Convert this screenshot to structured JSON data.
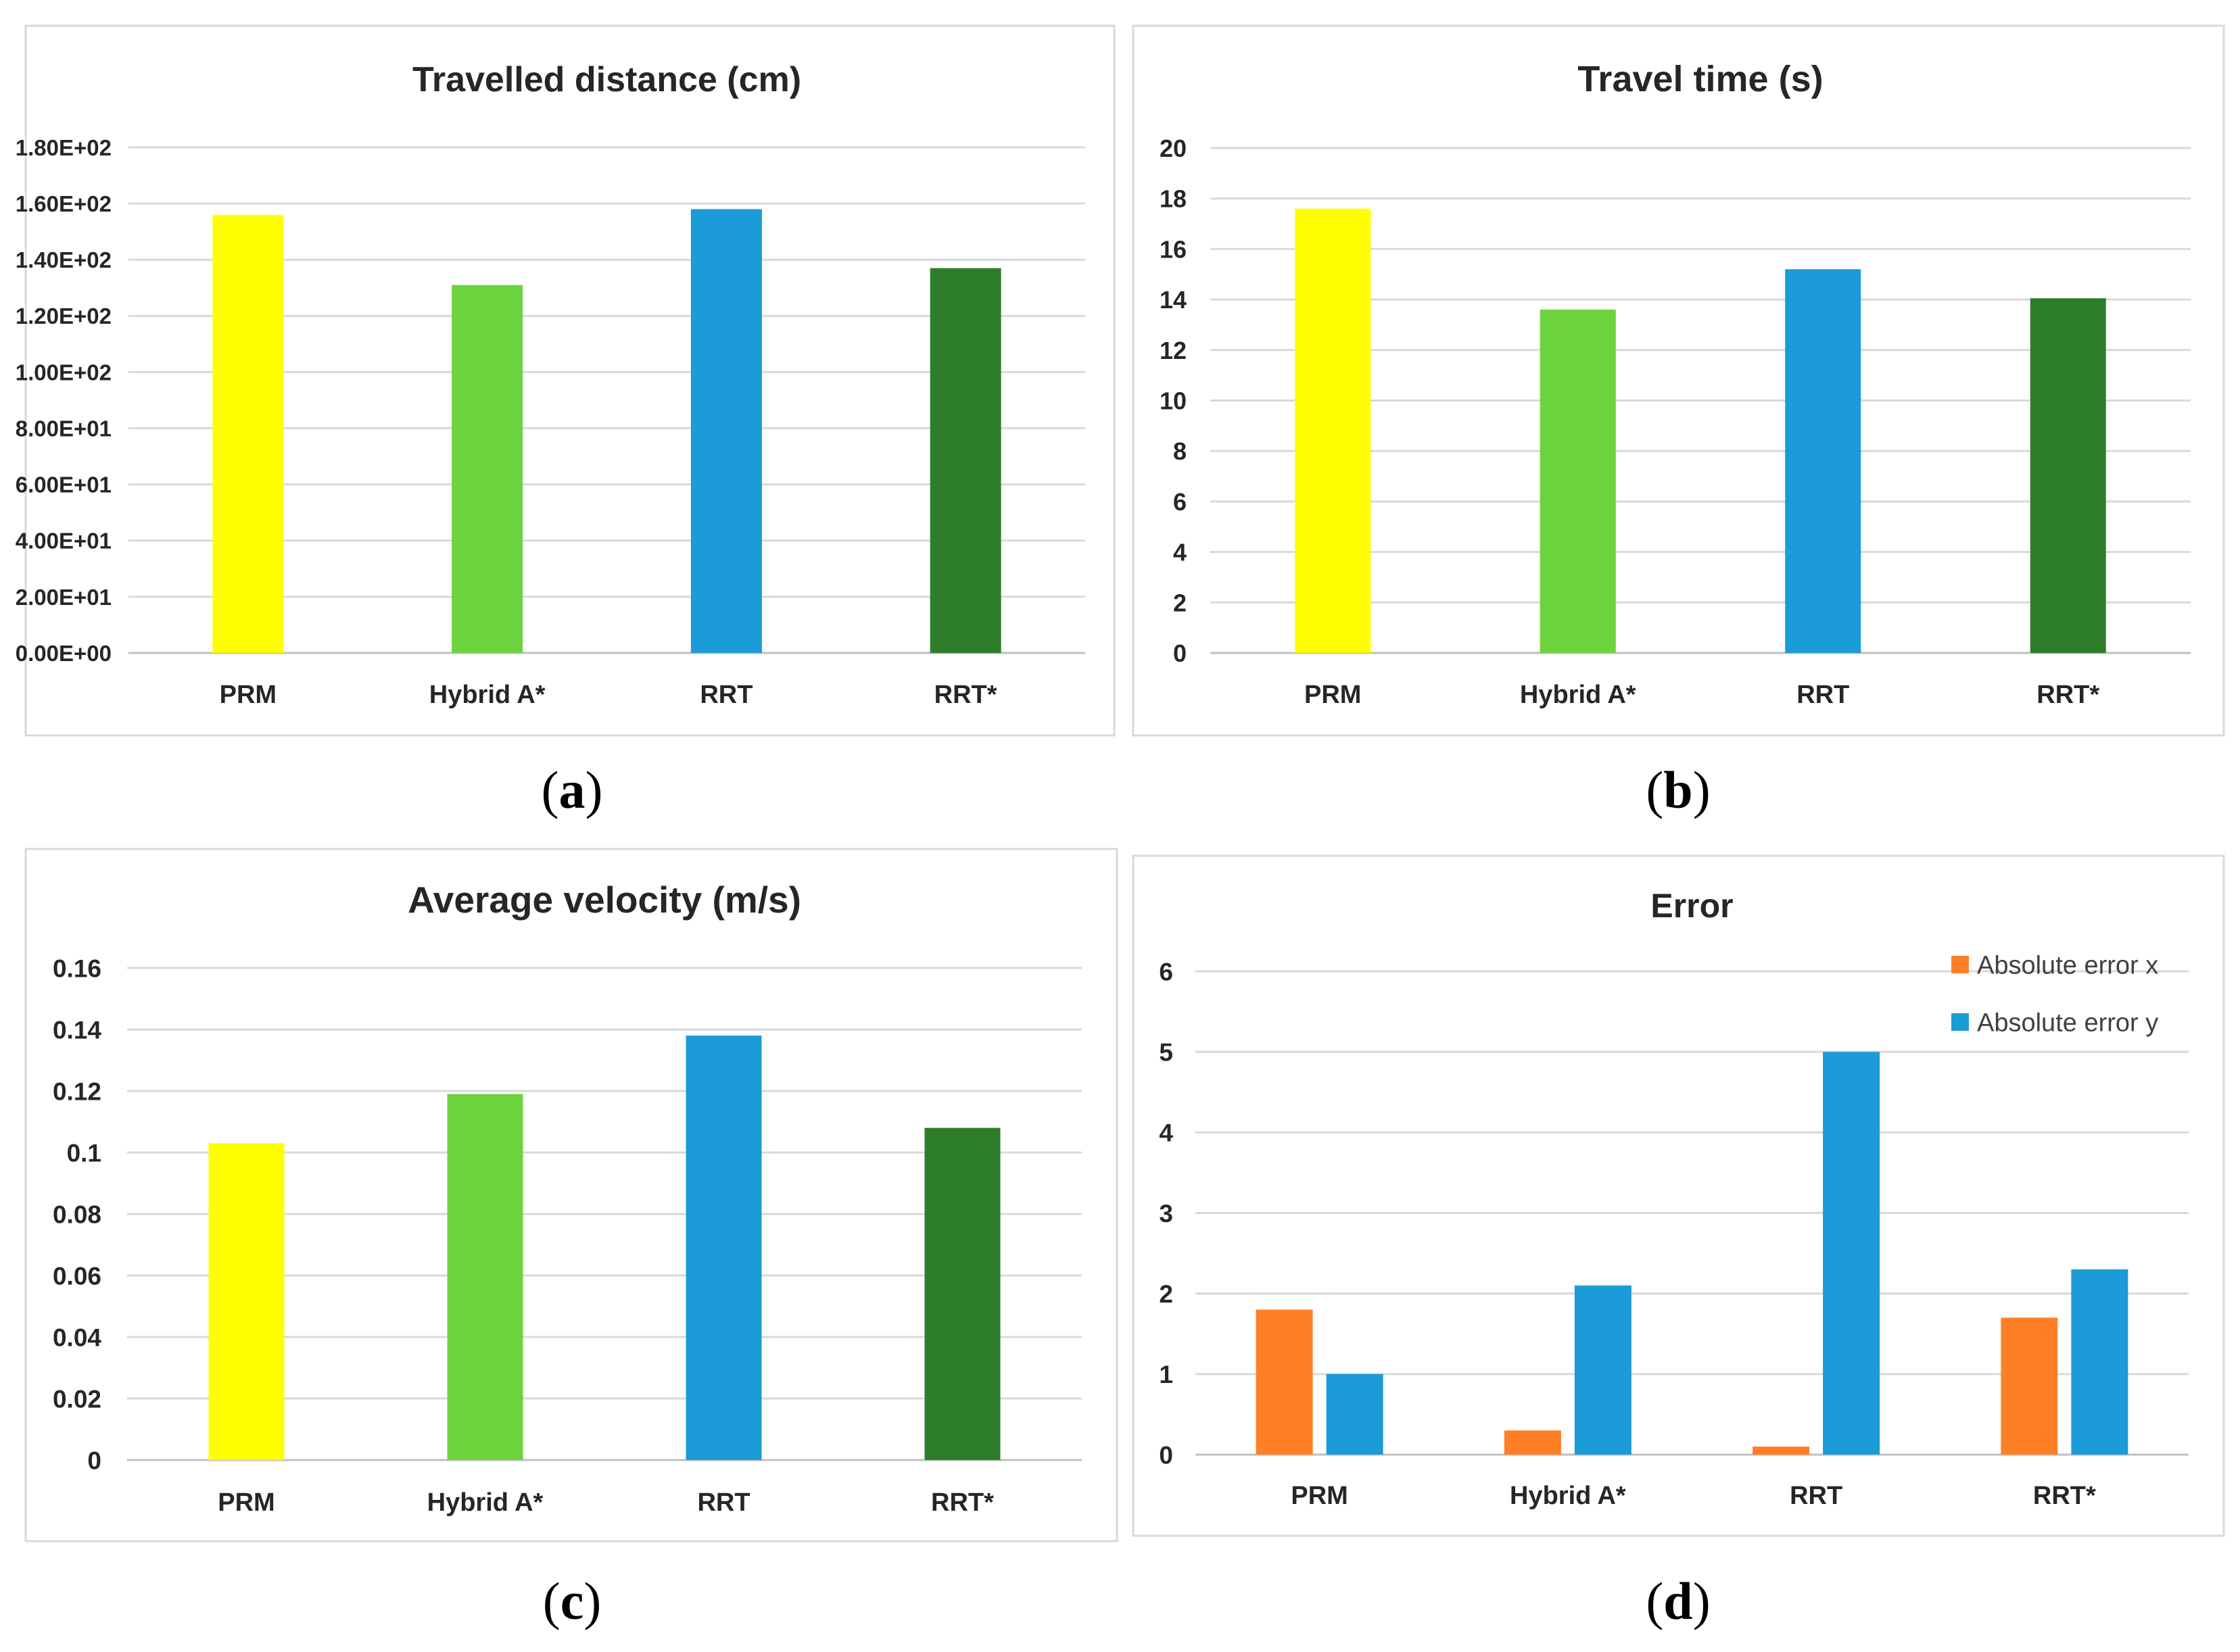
{
  "chart_data": [
    {
      "id": "a",
      "type": "bar",
      "title": "Travelled distance (cm)",
      "categories": [
        "PRM",
        "Hybrid A*",
        "RRT",
        "RRT*"
      ],
      "values": [
        156,
        131,
        158,
        137
      ],
      "colors": [
        "#FFFF00",
        "#6CD33F",
        "#1B9BD7",
        "#2E7D2B"
      ],
      "yticks": [
        "0.00E+00",
        "2.00E+01",
        "4.00E+01",
        "6.00E+01",
        "8.00E+01",
        "1.00E+02",
        "1.20E+02",
        "1.40E+02",
        "1.60E+02",
        "1.80E+02"
      ],
      "ylim": [
        0,
        180
      ],
      "caption_letter": "a"
    },
    {
      "id": "b",
      "type": "bar",
      "title": "Travel time (s)",
      "categories": [
        "PRM",
        "Hybrid A*",
        "RRT",
        "RRT*"
      ],
      "values": [
        17.6,
        13.6,
        15.2,
        14.05
      ],
      "colors": [
        "#FFFF00",
        "#6CD33F",
        "#1B9BD7",
        "#2E7D2B"
      ],
      "yticks": [
        "0",
        "2",
        "4",
        "6",
        "8",
        "10",
        "12",
        "14",
        "16",
        "18",
        "20"
      ],
      "ylim": [
        0,
        20
      ],
      "caption_letter": "b"
    },
    {
      "id": "c",
      "type": "bar",
      "title": "Average velocity (m/s)",
      "categories": [
        "PRM",
        "Hybrid A*",
        "RRT",
        "RRT*"
      ],
      "values": [
        0.103,
        0.119,
        0.138,
        0.108
      ],
      "colors": [
        "#FFFF00",
        "#6CD33F",
        "#1B9BD7",
        "#2E7D2B"
      ],
      "yticks": [
        "0",
        "0.02",
        "0.04",
        "0.06",
        "0.08",
        "0.1",
        "0.12",
        "0.14",
        "0.16"
      ],
      "ylim": [
        0,
        0.16
      ],
      "caption_letter": "c"
    },
    {
      "id": "d",
      "type": "bar",
      "title": "Error",
      "categories": [
        "PRM",
        "Hybrid A*",
        "RRT",
        "RRT*"
      ],
      "series": [
        {
          "name": "Absolute error x",
          "values": [
            1.8,
            0.3,
            0.1,
            1.7
          ],
          "color": "#FF7F27"
        },
        {
          "name": "Absolute error y",
          "values": [
            1.0,
            2.1,
            5.0,
            2.3
          ],
          "color": "#1B9BD7"
        }
      ],
      "yticks": [
        "0",
        "1",
        "2",
        "3",
        "4",
        "5",
        "6"
      ],
      "ylim": [
        0,
        6
      ],
      "legend_position": "top-right",
      "caption_letter": "d"
    }
  ]
}
